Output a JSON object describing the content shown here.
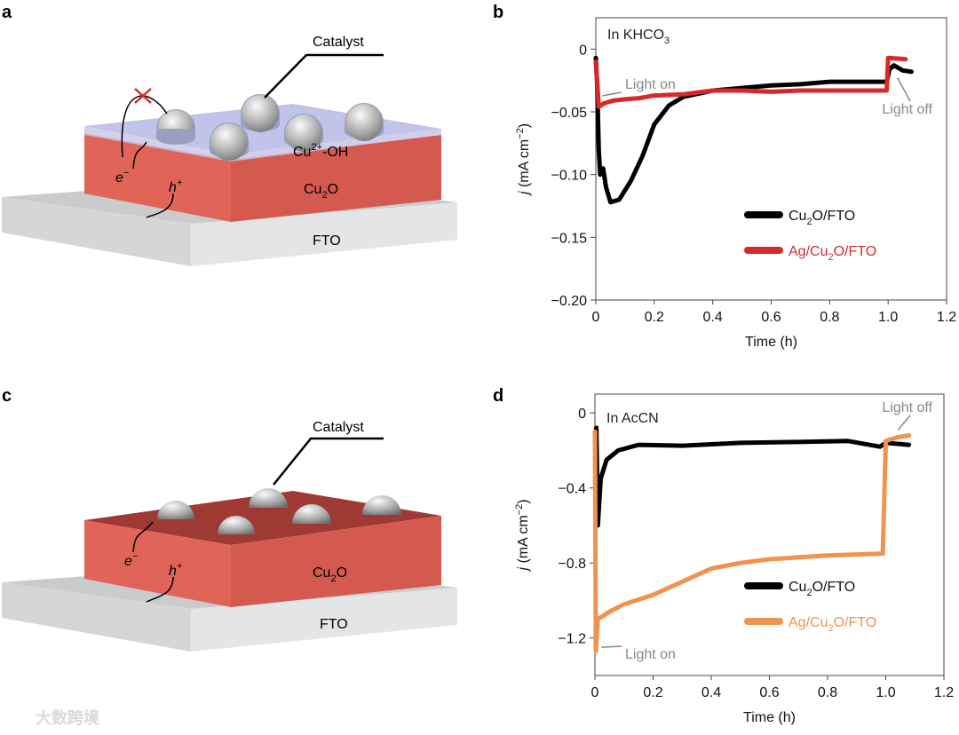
{
  "panels": {
    "a": {
      "letter": "a",
      "catalyst": "Catalyst",
      "layer_label": "Cu",
      "layer_sup": "2+",
      "layer_suffix": "-OH",
      "semiconductor": "Cu",
      "semiconductor_sub": "2",
      "semiconductor_suffix": "O",
      "substrate": "FTO",
      "electron": "e",
      "electron_sup": "−",
      "hole": "h",
      "hole_sup": "+"
    },
    "c": {
      "letter": "c",
      "catalyst": "Catalyst",
      "semiconductor": "Cu",
      "semiconductor_sub": "2",
      "semiconductor_suffix": "O",
      "substrate": "FTO",
      "electron": "e",
      "electron_sup": "−",
      "hole": "h",
      "hole_sup": "+"
    },
    "b": {
      "letter": "b"
    },
    "d": {
      "letter": "d"
    }
  },
  "colors": {
    "black_series": "#000000",
    "red_series": "#d62a2a",
    "orange_series": "#f0934f",
    "annotation": "#888888"
  },
  "watermark": "大数跨境",
  "chart_data": [
    {
      "type": "line",
      "panel": "b",
      "title": "In KHCO3",
      "title_main": "In KHCO",
      "title_sub": "3",
      "xlabel": "Time (h)",
      "ylabel": "j (mA cm−2)",
      "ylabel_j": "j",
      "ylabel_unit": " (mA cm",
      "ylabel_exp": "−2",
      "ylabel_close": ")",
      "xlim": [
        0,
        1.2
      ],
      "ylim": [
        -0.2,
        0.025
      ],
      "xticks": [
        0,
        0.2,
        0.4,
        0.6,
        0.8,
        1.0,
        1.2
      ],
      "xtick_labels": [
        "0",
        "0.2",
        "0.4",
        "0.6",
        "0.8",
        "1.0",
        "1.2"
      ],
      "yticks": [
        0,
        -0.05,
        -0.1,
        -0.15,
        -0.2
      ],
      "ytick_labels": [
        "0",
        "−0.05",
        "−0.10",
        "−0.15",
        "−0.20"
      ],
      "annotations": [
        {
          "text": "Light on",
          "x": 0.01,
          "y": -0.04
        },
        {
          "text": "Light off",
          "x": 1.02,
          "y": -0.02
        }
      ],
      "legend_position": "center-right",
      "series": [
        {
          "name": "Cu2O/FTO",
          "name_main": "Cu",
          "name_sub": "2",
          "name_rest": "O/FTO",
          "prefix": "",
          "color": "#000000",
          "points": [
            [
              0,
              -0.007
            ],
            [
              0.005,
              -0.03
            ],
            [
              0.01,
              -0.08
            ],
            [
              0.015,
              -0.1
            ],
            [
              0.025,
              -0.095
            ],
            [
              0.035,
              -0.11
            ],
            [
              0.05,
              -0.122
            ],
            [
              0.08,
              -0.12
            ],
            [
              0.12,
              -0.105
            ],
            [
              0.16,
              -0.085
            ],
            [
              0.2,
              -0.06
            ],
            [
              0.25,
              -0.045
            ],
            [
              0.3,
              -0.038
            ],
            [
              0.4,
              -0.033
            ],
            [
              0.5,
              -0.031
            ],
            [
              0.6,
              -0.029
            ],
            [
              0.7,
              -0.028
            ],
            [
              0.8,
              -0.026
            ],
            [
              0.9,
              -0.026
            ],
            [
              0.995,
              -0.026
            ],
            [
              1.005,
              -0.016
            ],
            [
              1.02,
              -0.013
            ],
            [
              1.05,
              -0.017
            ],
            [
              1.08,
              -0.018
            ]
          ]
        },
        {
          "name": "Ag/Cu2O/FTO",
          "prefix": "Ag/",
          "name_main": "Cu",
          "name_sub": "2",
          "name_rest": "O/FTO",
          "color": "#d62a2a",
          "points": [
            [
              0,
              -0.01
            ],
            [
              0.01,
              -0.046
            ],
            [
              0.03,
              -0.043
            ],
            [
              0.06,
              -0.041
            ],
            [
              0.1,
              -0.04
            ],
            [
              0.15,
              -0.039
            ],
            [
              0.2,
              -0.037
            ],
            [
              0.3,
              -0.036
            ],
            [
              0.4,
              -0.033
            ],
            [
              0.5,
              -0.033
            ],
            [
              0.6,
              -0.034
            ],
            [
              0.7,
              -0.033
            ],
            [
              0.8,
              -0.033
            ],
            [
              0.995,
              -0.033
            ],
            [
              1.0,
              -0.007
            ],
            [
              1.06,
              -0.008
            ]
          ]
        }
      ]
    },
    {
      "type": "line",
      "panel": "d",
      "title": "In AcCN",
      "title_main": "In AcCN",
      "title_sub": "",
      "xlabel": "Time (h)",
      "ylabel": "j (mA cm−2)",
      "ylabel_j": "j",
      "ylabel_unit": " (mA cm",
      "ylabel_exp": "−2",
      "ylabel_close": ")",
      "xlim": [
        0,
        1.2
      ],
      "ylim": [
        -1.4,
        0.1
      ],
      "xticks": [
        0,
        0.2,
        0.4,
        0.6,
        0.8,
        1.0,
        1.2
      ],
      "xtick_labels": [
        "0",
        "0.2",
        "0.4",
        "0.6",
        "0.8",
        "1.0",
        "1.2"
      ],
      "yticks": [
        0,
        -0.4,
        -0.8,
        -1.2
      ],
      "ytick_labels": [
        "0",
        "−0.4",
        "−0.8",
        "−1.2"
      ],
      "annotations": [
        {
          "text": "Light on",
          "x": 0.01,
          "y": -1.23
        },
        {
          "text": "Light off",
          "x": 1.03,
          "y": -0.11
        }
      ],
      "legend_position": "center-right",
      "series": [
        {
          "name": "Cu2O/FTO",
          "prefix": "",
          "name_main": "Cu",
          "name_sub": "2",
          "name_rest": "O/FTO",
          "color": "#000000",
          "points": [
            [
              0,
              -0.12
            ],
            [
              0.005,
              -0.08
            ],
            [
              0.01,
              -0.6
            ],
            [
              0.02,
              -0.35
            ],
            [
              0.04,
              -0.25
            ],
            [
              0.08,
              -0.2
            ],
            [
              0.15,
              -0.17
            ],
            [
              0.3,
              -0.175
            ],
            [
              0.5,
              -0.16
            ],
            [
              0.7,
              -0.155
            ],
            [
              0.87,
              -0.15
            ],
            [
              0.98,
              -0.18
            ],
            [
              1.0,
              -0.16
            ],
            [
              1.08,
              -0.17
            ]
          ]
        },
        {
          "name": "Ag/Cu2O/FTO",
          "prefix": "Ag/",
          "name_main": "Cu",
          "name_sub": "2",
          "name_rest": "O/FTO",
          "color": "#f0934f",
          "points": [
            [
              0,
              -0.1
            ],
            [
              0.003,
              -1.27
            ],
            [
              0.01,
              -1.1
            ],
            [
              0.05,
              -1.06
            ],
            [
              0.1,
              -1.02
            ],
            [
              0.2,
              -0.97
            ],
            [
              0.3,
              -0.9
            ],
            [
              0.4,
              -0.83
            ],
            [
              0.5,
              -0.8
            ],
            [
              0.6,
              -0.78
            ],
            [
              0.8,
              -0.76
            ],
            [
              0.99,
              -0.75
            ],
            [
              1.0,
              -0.15
            ],
            [
              1.04,
              -0.13
            ],
            [
              1.08,
              -0.12
            ]
          ]
        }
      ]
    }
  ]
}
